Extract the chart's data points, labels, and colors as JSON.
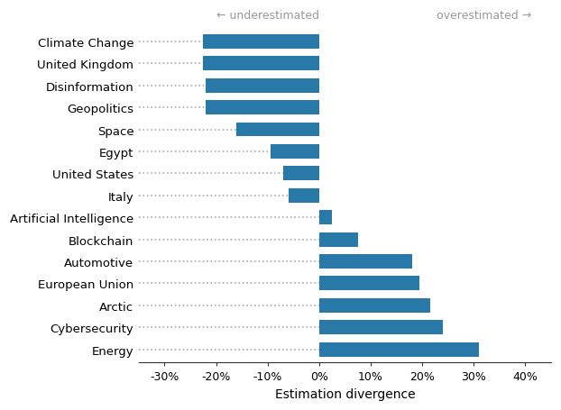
{
  "categories": [
    "Energy",
    "Cybersecurity",
    "Arctic",
    "European Union",
    "Automotive",
    "Blockchain",
    "Artificial Intelligence",
    "Italy",
    "United States",
    "Egypt",
    "Space",
    "Geopolitics",
    "Disinformation",
    "United Kingdom",
    "Climate Change"
  ],
  "values": [
    31.0,
    24.0,
    21.5,
    19.5,
    18.0,
    7.5,
    2.5,
    -6.0,
    -7.0,
    -9.5,
    -16.0,
    -22.0,
    -22.0,
    -22.5,
    -22.5
  ],
  "bar_color": "#2878a8",
  "dot_color": "#aaaaaa",
  "xlabel": "Estimation divergence",
  "xlim": [
    -35,
    45
  ],
  "xticks": [
    -30,
    -20,
    -10,
    0,
    10,
    20,
    30,
    40
  ],
  "xtick_labels": [
    "-30%",
    "-20%",
    "-10%",
    "0%",
    "10%",
    "20%",
    "30%",
    "40%"
  ],
  "annotation_left": "← underestimated",
  "annotation_right": "overestimated →",
  "annotation_color": "#999999",
  "annotation_fontsize": 9,
  "xlabel_fontsize": 10,
  "tick_fontsize": 9,
  "category_fontsize": 9.5,
  "background_color": "#ffffff",
  "bar_height": 0.65,
  "xlim_left": -35,
  "xlim_right": 45
}
